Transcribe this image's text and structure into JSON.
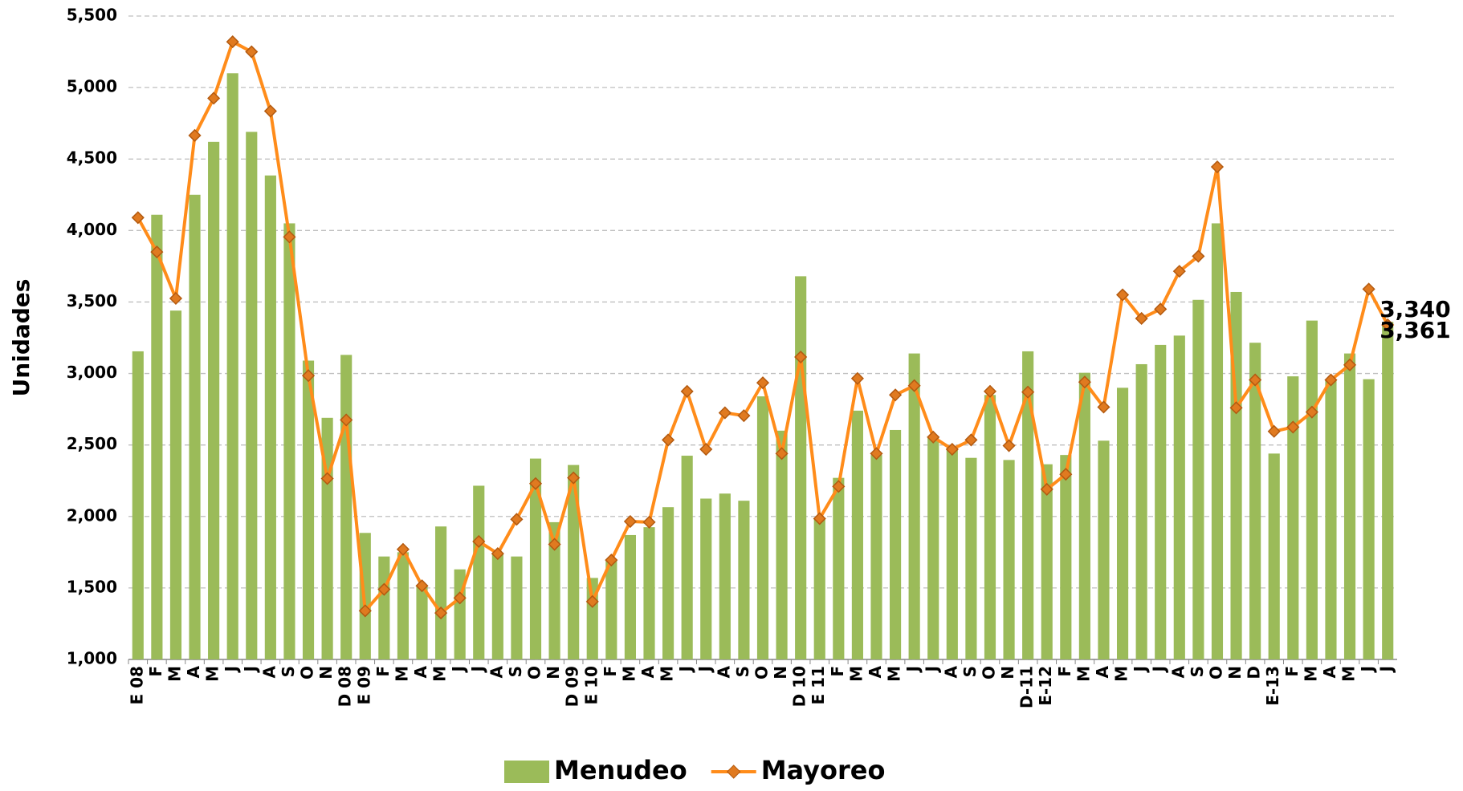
{
  "chart_data": {
    "type": "bar",
    "y_label": "Unidades",
    "categories": [
      "E 08",
      "F",
      "M",
      "A",
      "M",
      "J",
      "J",
      "A",
      "S",
      "O",
      "N",
      "D 08",
      "E 09",
      "F",
      "M",
      "A",
      "M",
      "J",
      "J",
      "A",
      "S",
      "O",
      "N",
      "D 09",
      "E 10",
      "F",
      "M",
      "A",
      "M",
      "J",
      "J",
      "A",
      "S",
      "O",
      "N",
      "D 10",
      "E 11",
      "F",
      "M",
      "A",
      "M",
      "J",
      "J",
      "A",
      "S",
      "O",
      "N",
      "D-11",
      "E-12",
      "F",
      "M",
      "A",
      "M",
      "J",
      "J",
      "A",
      "S",
      "O",
      "N",
      "D",
      "E-13",
      "F",
      "M",
      "A",
      "M",
      "J",
      "J"
    ],
    "series": [
      {
        "name": "Menudeo",
        "type": "bar",
        "color": "#9bbb59",
        "values": [
          3155,
          4110,
          3440,
          4250,
          4620,
          5100,
          4690,
          4385,
          4050,
          3090,
          2690,
          3130,
          1885,
          1720,
          1750,
          1520,
          1930,
          1630,
          2215,
          1740,
          1720,
          2405,
          1960,
          2360,
          1570,
          1700,
          1870,
          1925,
          2065,
          2425,
          2125,
          2160,
          2110,
          2840,
          2600,
          3680,
          1990,
          2270,
          2740,
          2430,
          2605,
          3140,
          2550,
          2480,
          2410,
          2850,
          2395,
          3155,
          2365,
          2430,
          3005,
          2530,
          2900,
          3065,
          3200,
          3265,
          3515,
          4050,
          3570,
          3215,
          2440,
          2980,
          3370,
          2950,
          3140,
          2960,
          3361
        ],
        "value_labels": [
          null,
          null,
          null,
          null,
          null,
          null,
          null,
          null,
          null,
          null,
          null,
          null,
          null,
          null,
          null,
          null,
          null,
          null,
          null,
          null,
          null,
          null,
          null,
          null,
          null,
          null,
          null,
          null,
          null,
          null,
          null,
          null,
          null,
          null,
          null,
          null,
          null,
          null,
          null,
          null,
          null,
          null,
          null,
          null,
          null,
          null,
          null,
          null,
          null,
          null,
          null,
          null,
          null,
          null,
          null,
          null,
          null,
          null,
          null,
          null,
          null,
          null,
          null,
          null,
          null,
          null,
          "3,361"
        ]
      },
      {
        "name": "Mayoreo",
        "type": "line",
        "color": "#ff8c1a",
        "values": [
          4090,
          3850,
          3525,
          4665,
          4925,
          5320,
          5250,
          4835,
          3955,
          2985,
          2265,
          2675,
          1340,
          1490,
          1770,
          1515,
          1325,
          1430,
          1825,
          1740,
          1980,
          2230,
          1805,
          2270,
          1405,
          1695,
          1965,
          1960,
          2535,
          2875,
          2470,
          2725,
          2705,
          2935,
          2440,
          3115,
          1985,
          2210,
          2965,
          2440,
          2850,
          2915,
          2555,
          2470,
          2535,
          2875,
          2495,
          2870,
          2190,
          2295,
          2940,
          2765,
          3550,
          3385,
          3450,
          3715,
          3820,
          4445,
          2760,
          2955,
          2595,
          2625,
          2730,
          2955,
          3060,
          3590,
          3340
        ],
        "value_labels": [
          null,
          null,
          null,
          null,
          null,
          null,
          null,
          null,
          null,
          null,
          null,
          null,
          null,
          null,
          null,
          null,
          null,
          null,
          null,
          null,
          null,
          null,
          null,
          null,
          null,
          null,
          null,
          null,
          null,
          null,
          null,
          null,
          null,
          null,
          null,
          null,
          null,
          null,
          null,
          null,
          null,
          null,
          null,
          null,
          null,
          null,
          null,
          null,
          null,
          null,
          null,
          null,
          null,
          null,
          null,
          null,
          null,
          null,
          null,
          null,
          null,
          null,
          null,
          null,
          null,
          null,
          "3,340"
        ]
      }
    ],
    "ylim": [
      1000,
      5500
    ],
    "yticks": [
      {
        "value": 1000,
        "label": "1,000"
      },
      {
        "value": 1500,
        "label": "1,500"
      },
      {
        "value": 2000,
        "label": "2,000"
      },
      {
        "value": 2500,
        "label": "2,500"
      },
      {
        "value": 3000,
        "label": "3,000"
      },
      {
        "value": 3500,
        "label": "3,500"
      },
      {
        "value": 4000,
        "label": "4,000"
      },
      {
        "value": 4500,
        "label": "4,500"
      },
      {
        "value": 5000,
        "label": "5,000"
      },
      {
        "value": 5500,
        "label": "5,500"
      }
    ],
    "grid": true,
    "legend": "bottom"
  }
}
